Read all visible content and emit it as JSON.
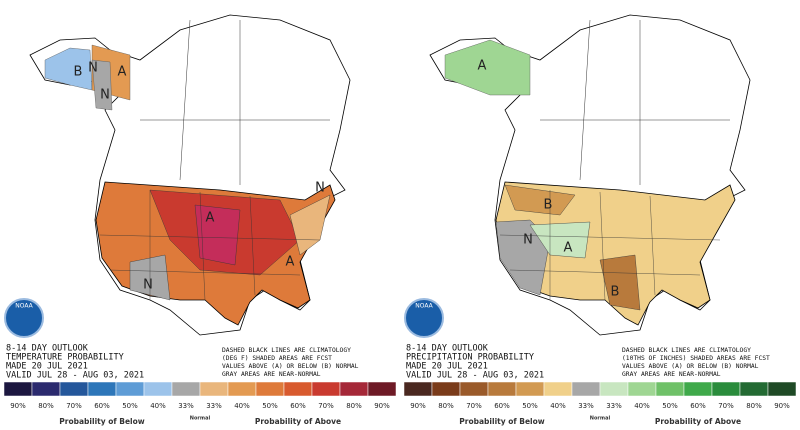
{
  "panels": [
    {
      "logo": "NOAA",
      "header": [
        "8-14 DAY OUTLOOK",
        "TEMPERATURE PROBABILITY",
        "MADE  20 JUL 2021",
        "VALID  JUL 28 - AUG 03, 2021"
      ],
      "note": [
        "DASHED BLACK LINES ARE CLIMATOLOGY",
        "(DEG F) SHADED AREAS ARE FCST",
        "VALUES ABOVE (A) OR BELOW (B) NORMAL",
        "GRAY AREAS ARE NEAR-NORMAL"
      ],
      "map_labels": [
        "B",
        "N",
        "A",
        "N",
        "A",
        "N",
        "A",
        "N"
      ],
      "legend": [
        {
          "label": "90%",
          "color": "#1c1740"
        },
        {
          "label": "80%",
          "color": "#2b2a6e"
        },
        {
          "label": "70%",
          "color": "#24579b"
        },
        {
          "label": "60%",
          "color": "#2d76b9"
        },
        {
          "label": "50%",
          "color": "#5e9cd6"
        },
        {
          "label": "40%",
          "color": "#9cc3ea"
        },
        {
          "label": "33%",
          "color": "#a7a7a7"
        },
        {
          "label": "33%",
          "color": "#e9b67c"
        },
        {
          "label": "40%",
          "color": "#e39a52"
        },
        {
          "label": "50%",
          "color": "#de7a3a"
        },
        {
          "label": "60%",
          "color": "#d85a2e"
        },
        {
          "label": "70%",
          "color": "#c93a2f"
        },
        {
          "label": "80%",
          "color": "#a52838"
        },
        {
          "label": "90%",
          "color": "#6e1a26"
        }
      ],
      "below_label": "Probability of Below",
      "normal_label": "Normal",
      "above_label": "Probability of Above"
    },
    {
      "logo": "NOAA",
      "header": [
        "8-14 DAY OUTLOOK",
        "PRECIPITATION PROBABILITY",
        "MADE  20 JUL 2021",
        "VALID  JUL 28 - AUG 03, 2021"
      ],
      "note": [
        "DASHED BLACK LINES ARE CLIMATOLOGY",
        "(10THS OF INCHES) SHADED AREAS ARE FCST",
        "VALUES ABOVE (A) OR BELOW (B) NORMAL",
        "GRAY AREAS ARE NEAR-NORMAL"
      ],
      "map_labels": [
        "A",
        "B",
        "N",
        "A",
        "B"
      ],
      "legend": [
        {
          "label": "90%",
          "color": "#4a2820"
        },
        {
          "label": "80%",
          "color": "#7a3b1a"
        },
        {
          "label": "70%",
          "color": "#9a5a2a"
        },
        {
          "label": "60%",
          "color": "#b87a3c"
        },
        {
          "label": "50%",
          "color": "#d29a52"
        },
        {
          "label": "40%",
          "color": "#f0d08a"
        },
        {
          "label": "33%",
          "color": "#a7a7a7"
        },
        {
          "label": "33%",
          "color": "#c8e6c0"
        },
        {
          "label": "40%",
          "color": "#9fd693"
        },
        {
          "label": "50%",
          "color": "#6fc168"
        },
        {
          "label": "60%",
          "color": "#3fa94a"
        },
        {
          "label": "70%",
          "color": "#2a8c3c"
        },
        {
          "label": "80%",
          "color": "#236a33"
        },
        {
          "label": "90%",
          "color": "#1f4a26"
        }
      ],
      "below_label": "Probability of Below",
      "normal_label": "Normal",
      "above_label": "Probability of Above"
    }
  ]
}
